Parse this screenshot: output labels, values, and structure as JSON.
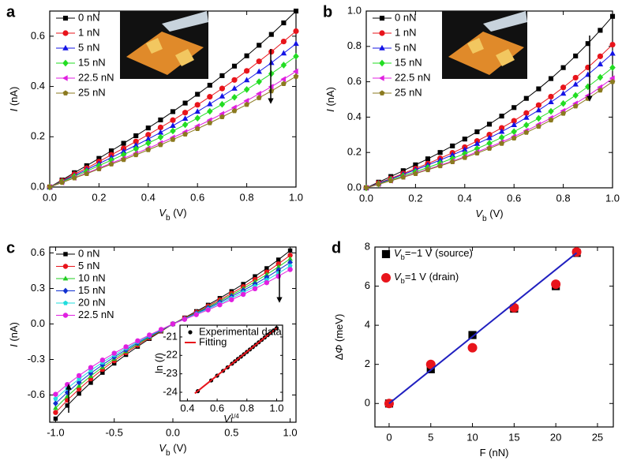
{
  "chart_data": [
    {
      "type": "line",
      "panel": "a",
      "legend": "upper left",
      "x_label": [
        {
          "text": "V",
          "style": "italic"
        },
        {
          "text": "b",
          "style": "sub"
        },
        {
          "text": " (V)"
        }
      ],
      "y_label": [
        {
          "text": "I",
          "style": "italic"
        },
        {
          "text": " (nA)"
        }
      ],
      "xlim": [
        0,
        1
      ],
      "ylim": [
        0,
        0.7
      ],
      "xticks": [
        {
          "value": 0,
          "label": "0.0"
        },
        0.2,
        0.4,
        0.6,
        0.8,
        {
          "value": 1,
          "label": "1.0"
        }
      ],
      "yticks": [
        {
          "value": 0,
          "label": "0.0"
        },
        0.2,
        0.4,
        0.6
      ],
      "x": [
        0,
        0.05,
        0.1,
        0.15,
        0.2,
        0.25,
        0.3,
        0.35,
        0.4,
        0.45,
        0.5,
        0.55,
        0.6,
        0.65,
        0.7,
        0.75,
        0.8,
        0.85,
        0.9,
        0.95,
        1
      ],
      "series": [
        {
          "name": "0 nN",
          "color": "#000000",
          "marker": "square",
          "values": [
            0,
            0.028,
            0.057,
            0.085,
            0.114,
            0.144,
            0.174,
            0.204,
            0.235,
            0.267,
            0.3,
            0.334,
            0.369,
            0.405,
            0.443,
            0.481,
            0.522,
            0.564,
            0.607,
            0.653,
            0.7
          ]
        },
        {
          "name": "1 nN",
          "color": "#e8141b",
          "marker": "circle",
          "values": [
            0,
            0.025,
            0.051,
            0.075,
            0.101,
            0.128,
            0.154,
            0.181,
            0.208,
            0.237,
            0.266,
            0.296,
            0.327,
            0.359,
            0.392,
            0.426,
            0.462,
            0.5,
            0.538,
            0.579,
            0.62
          ]
        },
        {
          "name": "5 nN",
          "color": "#1414e6",
          "marker": "triangle-up",
          "values": [
            0,
            0.023,
            0.046,
            0.069,
            0.093,
            0.117,
            0.142,
            0.166,
            0.191,
            0.217,
            0.244,
            0.272,
            0.3,
            0.33,
            0.361,
            0.392,
            0.425,
            0.459,
            0.494,
            0.532,
            0.57
          ]
        },
        {
          "name": "15 nN",
          "color": "#22dd22",
          "marker": "diamond",
          "values": [
            0,
            0.021,
            0.042,
            0.063,
            0.085,
            0.107,
            0.129,
            0.152,
            0.175,
            0.198,
            0.223,
            0.248,
            0.274,
            0.301,
            0.329,
            0.357,
            0.388,
            0.419,
            0.451,
            0.485,
            0.52
          ]
        },
        {
          "name": "22.5 nN",
          "color": "#e020e0",
          "marker": "triangle-left",
          "values": [
            0,
            0.018,
            0.037,
            0.056,
            0.075,
            0.095,
            0.114,
            0.134,
            0.154,
            0.175,
            0.197,
            0.219,
            0.242,
            0.266,
            0.291,
            0.316,
            0.343,
            0.371,
            0.399,
            0.429,
            0.46
          ]
        },
        {
          "name": "25 nN",
          "color": "#8b7a1f",
          "marker": "pentagon",
          "values": [
            0,
            0.018,
            0.036,
            0.053,
            0.072,
            0.091,
            0.109,
            0.128,
            0.148,
            0.168,
            0.189,
            0.21,
            0.232,
            0.255,
            0.279,
            0.303,
            0.328,
            0.355,
            0.382,
            0.411,
            0.44
          ]
        }
      ]
    },
    {
      "type": "line",
      "panel": "b",
      "legend": "upper left",
      "x_label": [
        {
          "text": "V",
          "style": "italic"
        },
        {
          "text": "b",
          "style": "sub"
        },
        {
          "text": " (V)"
        }
      ],
      "y_label": [
        {
          "text": "I",
          "style": "italic"
        },
        {
          "text": " (nA)"
        }
      ],
      "xlim": [
        0,
        1
      ],
      "ylim": [
        0,
        1
      ],
      "xticks": [
        {
          "value": 0,
          "label": "0.0"
        },
        0.2,
        0.4,
        0.6,
        0.8,
        {
          "value": 1,
          "label": "1.0"
        }
      ],
      "yticks": [
        {
          "value": 0,
          "label": "0.0"
        },
        0.2,
        0.4,
        0.6,
        0.8,
        {
          "value": 1,
          "label": "1.0"
        }
      ],
      "x": [
        0,
        0.05,
        0.1,
        0.15,
        0.2,
        0.25,
        0.3,
        0.35,
        0.4,
        0.45,
        0.5,
        0.55,
        0.6,
        0.65,
        0.7,
        0.75,
        0.8,
        0.85,
        0.9,
        0.95,
        1
      ],
      "series": [
        {
          "name": "0 nN",
          "color": "#000000",
          "marker": "square",
          "values": [
            0,
            0.032,
            0.064,
            0.097,
            0.13,
            0.164,
            0.2,
            0.237,
            0.276,
            0.317,
            0.36,
            0.406,
            0.454,
            0.506,
            0.56,
            0.618,
            0.68,
            0.746,
            0.816,
            0.891,
            0.97
          ]
        },
        {
          "name": "1 nN",
          "color": "#e8141b",
          "marker": "circle",
          "values": [
            0,
            0.027,
            0.053,
            0.081,
            0.109,
            0.137,
            0.167,
            0.198,
            0.23,
            0.265,
            0.301,
            0.339,
            0.379,
            0.423,
            0.468,
            0.516,
            0.568,
            0.623,
            0.681,
            0.744,
            0.81
          ]
        },
        {
          "name": "5 nN",
          "color": "#1414e6",
          "marker": "triangle-up",
          "values": [
            0,
            0.025,
            0.05,
            0.076,
            0.102,
            0.129,
            0.157,
            0.186,
            0.216,
            0.249,
            0.282,
            0.318,
            0.356,
            0.397,
            0.439,
            0.485,
            0.533,
            0.585,
            0.64,
            0.699,
            0.76
          ]
        },
        {
          "name": "15 nN",
          "color": "#22dd22",
          "marker": "diamond",
          "values": [
            0,
            0.022,
            0.045,
            0.068,
            0.091,
            0.115,
            0.14,
            0.166,
            0.193,
            0.222,
            0.252,
            0.285,
            0.318,
            0.355,
            0.393,
            0.433,
            0.477,
            0.523,
            0.572,
            0.625,
            0.68
          ]
        },
        {
          "name": "22.5 nN",
          "color": "#e020e0",
          "marker": "triangle-left",
          "values": [
            0,
            0.02,
            0.041,
            0.062,
            0.083,
            0.105,
            0.128,
            0.151,
            0.176,
            0.203,
            0.23,
            0.259,
            0.29,
            0.323,
            0.358,
            0.395,
            0.435,
            0.477,
            0.521,
            0.569,
            0.62
          ]
        },
        {
          "name": "25 nN",
          "color": "#8b7a1f",
          "marker": "pentagon",
          "values": [
            0,
            0.02,
            0.04,
            0.06,
            0.08,
            0.102,
            0.124,
            0.147,
            0.171,
            0.196,
            0.223,
            0.251,
            0.281,
            0.313,
            0.347,
            0.383,
            0.421,
            0.462,
            0.505,
            0.552,
            0.6
          ]
        }
      ]
    },
    {
      "type": "line",
      "panel": "c",
      "legend": "upper left",
      "x_label": [
        {
          "text": "V",
          "style": "italic"
        },
        {
          "text": "b",
          "style": "sub"
        },
        {
          "text": " (V)"
        }
      ],
      "y_label": [
        {
          "text": "I",
          "style": "italic"
        },
        {
          "text": " (nA)"
        }
      ],
      "xlim": [
        -1.05,
        1.05
      ],
      "ylim": [
        -0.83,
        0.65
      ],
      "xticks": [
        {
          "value": -1,
          "label": "-1.0"
        },
        -0.5,
        {
          "value": 0,
          "label": "0.0"
        },
        0.5,
        {
          "value": 1,
          "label": "1.0"
        }
      ],
      "yticks": [
        -0.6,
        -0.3,
        {
          "value": 0,
          "label": "0.0"
        },
        0.3,
        0.6
      ],
      "x": [
        -1,
        -0.9,
        -0.8,
        -0.7,
        -0.6,
        -0.5,
        -0.4,
        -0.3,
        -0.2,
        -0.1,
        0,
        0.1,
        0.2,
        0.3,
        0.4,
        0.5,
        0.6,
        0.7,
        0.8,
        0.9,
        1
      ],
      "series": [
        {
          "name": "0 nN",
          "color": "#000000",
          "marker": "square",
          "values": [
            -0.8,
            -0.689,
            -0.588,
            -0.496,
            -0.411,
            -0.333,
            -0.26,
            -0.191,
            -0.125,
            -0.062,
            0,
            0.053,
            0.107,
            0.161,
            0.218,
            0.276,
            0.337,
            0.402,
            0.47,
            0.543,
            0.62
          ]
        },
        {
          "name": "5 nN",
          "color": "#e8141b",
          "marker": "circle",
          "values": [
            -0.748,
            -0.644,
            -0.55,
            -0.464,
            -0.384,
            -0.311,
            -0.243,
            -0.179,
            -0.117,
            -0.058,
            0,
            0.05,
            0.1,
            0.151,
            0.204,
            0.258,
            0.315,
            0.376,
            0.439,
            0.508,
            0.58
          ]
        },
        {
          "name": "10 nN",
          "color": "#22cc22",
          "marker": "triangle-up",
          "values": [
            -0.71,
            -0.611,
            -0.522,
            -0.44,
            -0.365,
            -0.295,
            -0.231,
            -0.169,
            -0.111,
            -0.055,
            0,
            0.047,
            0.095,
            0.143,
            0.193,
            0.245,
            0.299,
            0.357,
            0.417,
            0.482,
            0.55
          ]
        },
        {
          "name": "15 nN",
          "color": "#1030d0",
          "marker": "diamond",
          "values": [
            -0.671,
            -0.578,
            -0.493,
            -0.416,
            -0.345,
            -0.279,
            -0.218,
            -0.16,
            -0.105,
            -0.052,
            0,
            0.044,
            0.09,
            0.135,
            0.183,
            0.232,
            0.283,
            0.337,
            0.394,
            0.456,
            0.52
          ]
        },
        {
          "name": "20 nN",
          "color": "#20dddd",
          "marker": "pentagon",
          "values": [
            -0.632,
            -0.544,
            -0.465,
            -0.392,
            -0.325,
            -0.263,
            -0.205,
            -0.151,
            -0.099,
            -0.049,
            0,
            0.042,
            0.085,
            0.127,
            0.172,
            0.218,
            0.266,
            0.318,
            0.371,
            0.429,
            0.49
          ]
        },
        {
          "name": "22.5 nN",
          "color": "#e020e0",
          "marker": "circle",
          "values": [
            -0.594,
            -0.511,
            -0.436,
            -0.368,
            -0.305,
            -0.247,
            -0.193,
            -0.142,
            -0.093,
            -0.046,
            0,
            0.039,
            0.079,
            0.119,
            0.162,
            0.205,
            0.25,
            0.298,
            0.349,
            0.403,
            0.46
          ]
        }
      ]
    },
    {
      "type": "scatter",
      "panel": "d",
      "legend": "upper left",
      "x_label": [
        {
          "text": "F (nN)"
        }
      ],
      "y_label": [
        {
          "text": "Δ"
        },
        {
          "text": "Φ",
          "style": "italic"
        },
        {
          "text": " (meV)"
        }
      ],
      "xlim": [
        -1.7,
        26.9
      ],
      "ylim": [
        -1.2,
        8
      ],
      "xticks": [
        0,
        5,
        10,
        15,
        20,
        25
      ],
      "yticks": [
        0,
        2,
        4,
        6,
        8
      ],
      "series": [
        {
          "name": [
            {
              "text": "V",
              "style": "italic"
            },
            {
              "text": "b",
              "style": "sub"
            },
            {
              "text": "=−1 V (source)"
            }
          ],
          "color": "#000000",
          "marker": "square",
          "line": false,
          "x": [
            0,
            5,
            10,
            15,
            20,
            22.5
          ],
          "values": [
            0,
            1.75,
            3.5,
            4.85,
            6.0,
            7.7
          ]
        },
        {
          "name": [
            {
              "text": "V",
              "style": "italic"
            },
            {
              "text": "b",
              "style": "sub"
            },
            {
              "text": "=1 V (drain)"
            }
          ],
          "color": "#e8141b",
          "marker": "circle",
          "line": false,
          "x": [
            0,
            5,
            10,
            15,
            20,
            22.5
          ],
          "values": [
            0,
            2.0,
            2.85,
            4.9,
            6.1,
            7.75
          ]
        },
        {
          "color": "#2020c0",
          "marker": "none",
          "x": [
            0,
            22.5
          ],
          "values": [
            0,
            7.7
          ]
        }
      ]
    },
    {
      "type": "scatter",
      "legend": "upper left",
      "x_label": [
        {
          "text": "V",
          "style": "italic"
        },
        {
          "text": "1/4",
          "style": "sup"
        }
      ],
      "y_label": [
        {
          "text": "ln ("
        },
        {
          "text": "I",
          "style": "italic"
        },
        {
          "text": ")"
        }
      ],
      "xlim": [
        0.35,
        1.04
      ],
      "ylim": [
        -24.47,
        -20.36
      ],
      "xticks": [
        0.4,
        0.6,
        0.8,
        {
          "value": 1,
          "label": "1.0"
        }
      ],
      "yticks": [
        -24,
        -23,
        -22,
        -21
      ],
      "series": [
        {
          "name": "Experimental data",
          "color": "#000000",
          "marker": "circle",
          "line": false,
          "x": [
            0.47,
            0.56,
            0.6,
            0.64,
            0.67,
            0.7,
            0.72,
            0.74,
            0.76,
            0.78,
            0.8,
            0.82,
            0.84,
            0.86,
            0.88,
            0.9,
            0.92,
            0.94,
            0.96,
            0.98,
            1.0
          ],
          "values": [
            -23.94,
            -23.36,
            -23.1,
            -22.84,
            -22.65,
            -22.45,
            -22.32,
            -22.19,
            -22.07,
            -21.94,
            -21.81,
            -21.68,
            -21.55,
            -21.42,
            -21.29,
            -21.16,
            -21.03,
            -20.9,
            -20.78,
            -20.65,
            -20.52
          ]
        },
        {
          "name": "Fitting",
          "color": "#e8141b",
          "marker": "none",
          "x": [
            0.45,
            1.0
          ],
          "values": [
            -24.06,
            -20.52
          ]
        }
      ]
    }
  ]
}
